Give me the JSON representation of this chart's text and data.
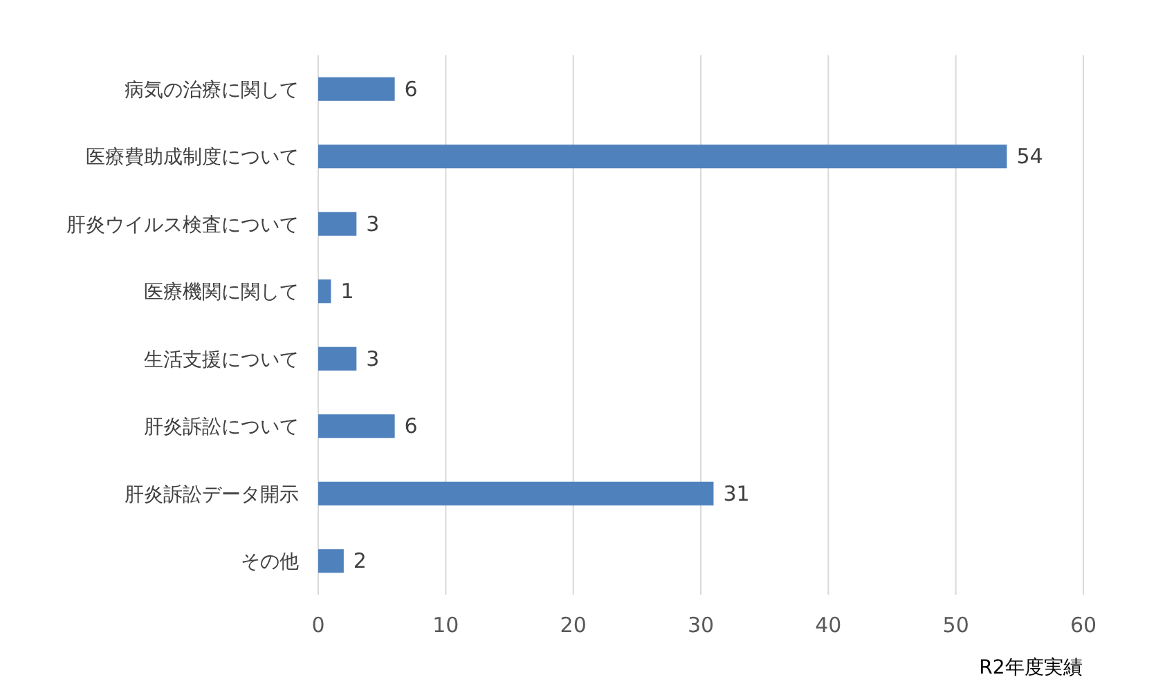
{
  "chart_data": {
    "type": "bar",
    "orientation": "horizontal",
    "categories": [
      "病気の治療に関して",
      "医療費助成制度について",
      "肝炎ウイルス検査について",
      "医療機関に関して",
      "生活支援について",
      "肝炎訴訟について",
      "肝炎訴訟データ開示",
      "その他"
    ],
    "values": [
      6,
      54,
      3,
      1,
      3,
      6,
      31,
      2
    ],
    "color": "#4f81bd",
    "xlim": [
      0,
      60
    ],
    "xticks": [
      0,
      10,
      20,
      30,
      40,
      50,
      60
    ],
    "grid": "x",
    "data_labels": true,
    "xlabel": "R2年度実績"
  }
}
